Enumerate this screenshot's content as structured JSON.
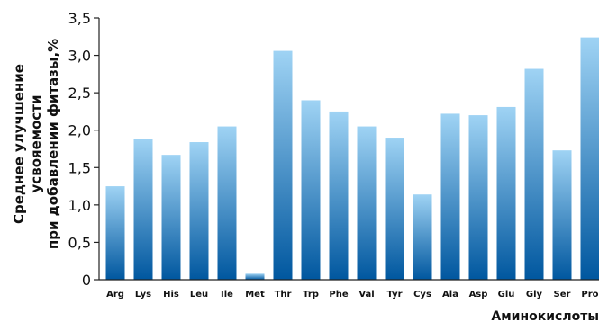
{
  "chart_data": {
    "type": "bar",
    "categories": [
      "Arg",
      "Lys",
      "His",
      "Leu",
      "Ile",
      "Met",
      "Thr",
      "Trp",
      "Phe",
      "Val",
      "Tyr",
      "Cys",
      "Ala",
      "Asp",
      "Glu",
      "Gly",
      "Ser",
      "Pro"
    ],
    "values": [
      1.25,
      1.88,
      1.67,
      1.84,
      2.05,
      0.08,
      3.06,
      2.4,
      2.25,
      2.05,
      1.9,
      1.14,
      2.22,
      2.2,
      2.31,
      2.82,
      1.73,
      3.24
    ],
    "ylabel_lines": [
      "Среднее улучшение",
      "усвояемости",
      "при добавлении фитазы,%"
    ],
    "xlabel": "Аминокислоты",
    "ylim": [
      0,
      3.5
    ],
    "yticks": [
      "0",
      "0,5",
      "1,0",
      "1,5",
      "2,0",
      "2,5",
      "3,0",
      "3,5"
    ],
    "grid": false,
    "bar_color_top": "#9fd3f4",
    "bar_color_bottom": "#00579f"
  }
}
